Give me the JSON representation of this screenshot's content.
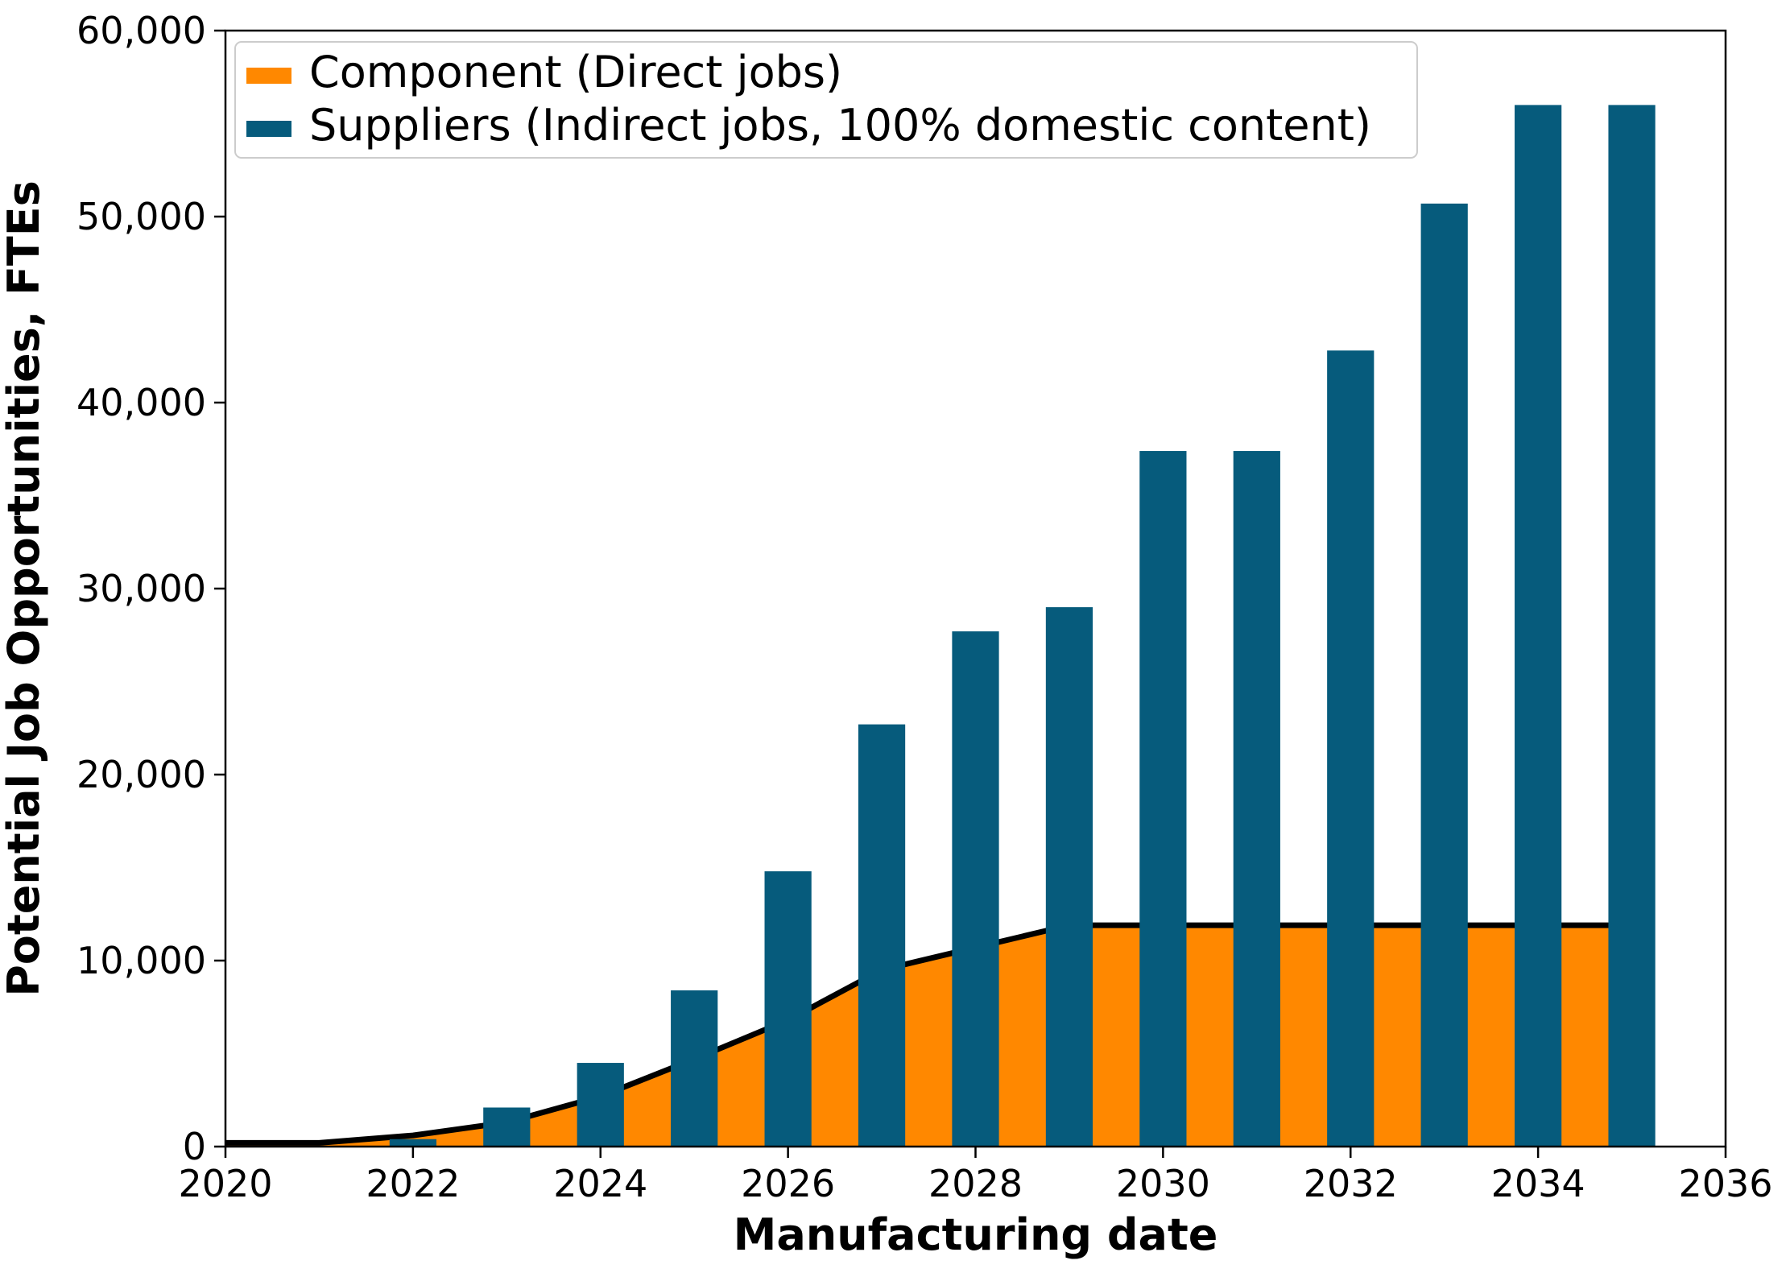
{
  "chart_data": {
    "type": "bar",
    "xlabel": "Manufacturing date",
    "ylabel": "Potential Job Opportunities, FTEs",
    "xlim": [
      2020,
      2036
    ],
    "ylim": [
      0,
      60000
    ],
    "x_ticks": [
      "2020",
      "2022",
      "2024",
      "2026",
      "2028",
      "2030",
      "2032",
      "2034",
      "2036"
    ],
    "y_ticks": [
      "0",
      "10,000",
      "20,000",
      "30,000",
      "40,000",
      "50,000",
      "60,000"
    ],
    "grid": false,
    "legend_position": "top-left",
    "legend": [
      {
        "label": "Component (Direct jobs)",
        "color": "#ff8800"
      },
      {
        "label": "Suppliers (Indirect jobs, 100% domestic content)",
        "color": "#065b7c"
      }
    ],
    "series": [
      {
        "name": "Component (Direct jobs)",
        "type": "area",
        "color": "#ff8800",
        "outline_color": "#000000",
        "x": [
          2020,
          2021,
          2022,
          2023,
          2024,
          2025,
          2026,
          2027,
          2028,
          2029,
          2030,
          2031,
          2032,
          2033,
          2034,
          2035
        ],
        "values": [
          200,
          200,
          600,
          1300,
          2700,
          4700,
          6800,
          9500,
          10700,
          11900,
          11900,
          11900,
          11900,
          11900,
          11900,
          11900
        ]
      },
      {
        "name": "Suppliers (Indirect jobs, 100% domestic content)",
        "type": "bar",
        "color": "#065b7c",
        "x": [
          2022,
          2023,
          2024,
          2025,
          2026,
          2027,
          2028,
          2029,
          2030,
          2031,
          2032,
          2033,
          2034,
          2035
        ],
        "values": [
          400,
          2100,
          4500,
          8400,
          14800,
          22700,
          27700,
          29000,
          37400,
          37400,
          42800,
          50700,
          56000,
          56000
        ]
      }
    ]
  }
}
